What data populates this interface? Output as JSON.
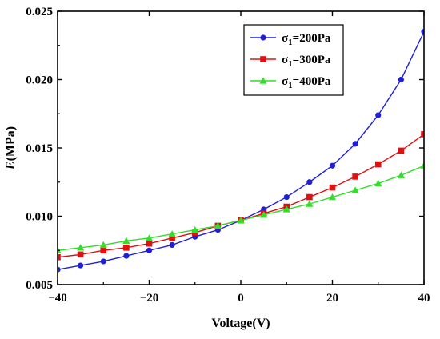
{
  "chart_data": {
    "type": "line",
    "title": "",
    "xlabel": "Voltage(V)",
    "ylabel_italic": "E",
    "ylabel_unit": "(MPa)",
    "xlim": [
      -40,
      40
    ],
    "ylim": [
      0.005,
      0.025
    ],
    "xticks": [
      -40,
      -20,
      0,
      20,
      40
    ],
    "xtick_labels": [
      "−40",
      "−20",
      "0",
      "20",
      "40"
    ],
    "yticks": [
      0.005,
      0.01,
      0.015,
      0.02,
      0.025
    ],
    "ytick_labels": [
      "0.005",
      "0.010",
      "0.015",
      "0.020",
      "0.025"
    ],
    "grid": false,
    "legend_position": "top-right",
    "x": [
      -40,
      -35,
      -30,
      -25,
      -20,
      -15,
      -10,
      -5,
      0,
      5,
      10,
      15,
      20,
      25,
      30,
      35,
      40
    ],
    "series": [
      {
        "name_sym": "σ",
        "name_sub": "1",
        "name_rest": "=200Pa",
        "color": "#1f1fd6",
        "marker": "circle",
        "values": [
          0.0061,
          0.0064,
          0.0067,
          0.0071,
          0.0075,
          0.0079,
          0.0085,
          0.009,
          0.0097,
          0.0105,
          0.0114,
          0.0125,
          0.0137,
          0.0153,
          0.0174,
          0.02,
          0.0235
        ]
      },
      {
        "name_sym": "σ",
        "name_sub": "1",
        "name_rest": "=300Pa",
        "color": "#e01010",
        "marker": "square",
        "values": [
          0.007,
          0.0072,
          0.0075,
          0.0077,
          0.008,
          0.0084,
          0.0088,
          0.0093,
          0.0097,
          0.0102,
          0.0107,
          0.0114,
          0.0121,
          0.0129,
          0.0138,
          0.0148,
          0.016
        ]
      },
      {
        "name_sym": "σ",
        "name_sub": "1",
        "name_rest": "=400Pa",
        "color": "#33dd2a",
        "marker": "triangle",
        "values": [
          0.0075,
          0.0077,
          0.0079,
          0.0082,
          0.0084,
          0.0087,
          0.009,
          0.0093,
          0.0097,
          0.0101,
          0.0105,
          0.0109,
          0.0114,
          0.0119,
          0.0124,
          0.013,
          0.0137
        ]
      }
    ]
  }
}
